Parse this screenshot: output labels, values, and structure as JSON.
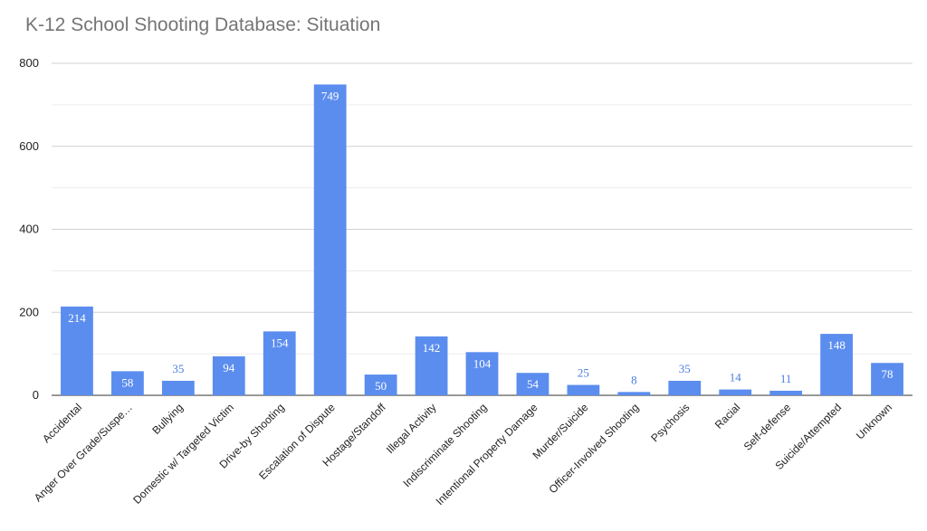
{
  "chart_data": {
    "type": "bar",
    "title": "K-12 School Shooting Database: Situation",
    "xlabel": "",
    "ylabel": "",
    "ylim": [
      0,
      800
    ],
    "yticks": [
      0,
      200,
      400,
      600,
      800
    ],
    "minor_grid_step": 100,
    "grid": true,
    "legend": "none",
    "bar_color": "#5b8def",
    "label_inside_color": "#ffffff",
    "label_outside_color": "#4a7fe0",
    "categories": [
      "Accidental",
      "Anger Over Grade/Suspe…",
      "Bullying",
      "Domestic w/ Targeted Victim",
      "Drive-by Shooting",
      "Escalation of Dispute",
      "Hostage/Standoff",
      "Illegal Activity",
      "Indiscriminate Shooting",
      "Intentional Property Damage",
      "Murder/Suicide",
      "Officer-Involved Shooting",
      "Psychosis",
      "Racial",
      "Self-defense",
      "Suicide/Attempted",
      "Unknown"
    ],
    "values": [
      214,
      58,
      35,
      94,
      154,
      749,
      50,
      142,
      104,
      54,
      25,
      8,
      35,
      14,
      11,
      148,
      78
    ]
  }
}
